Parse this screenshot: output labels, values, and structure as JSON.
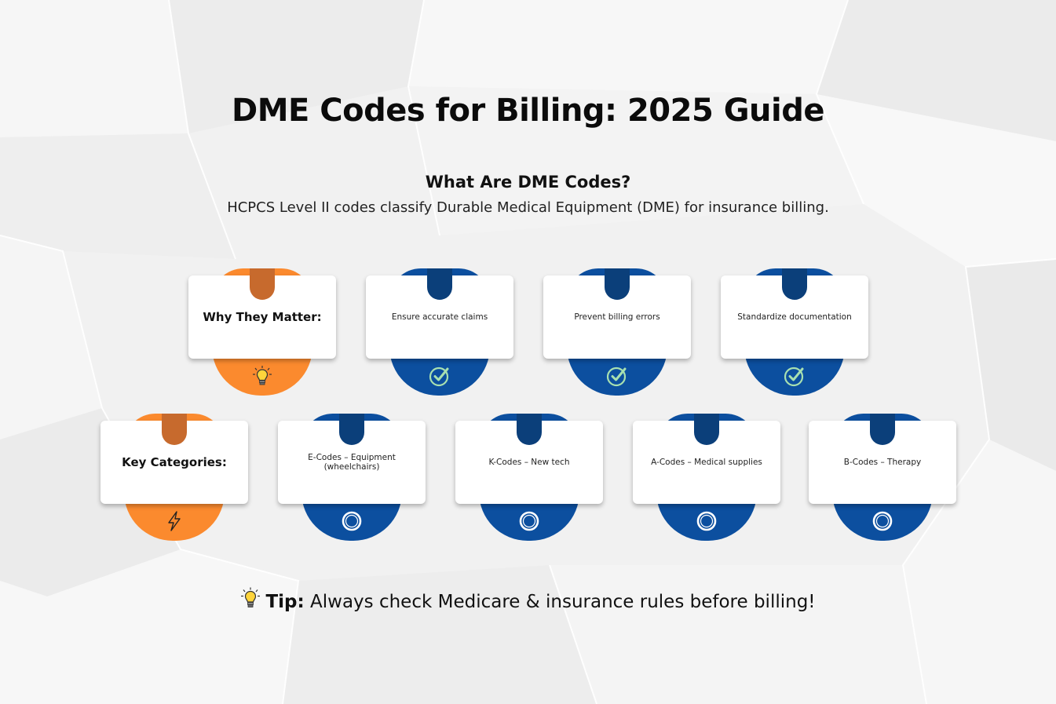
{
  "title": "DME Codes for Billing: 2025 Guide",
  "subtitle": "What Are DME Codes?",
  "description": "HCPCS Level II codes classify Durable Medical Equipment (DME) for insurance billing.",
  "row1": {
    "header": {
      "label": "Why They Matter:",
      "icon": "lightbulb-icon"
    },
    "items": [
      {
        "label": "Ensure accurate claims",
        "icon": "check-circle-icon"
      },
      {
        "label": "Prevent billing errors",
        "icon": "check-circle-icon"
      },
      {
        "label": "Standardize documentation",
        "icon": "check-circle-icon"
      }
    ]
  },
  "row2": {
    "header": {
      "label": "Key Categories:",
      "icon": "lightning-icon"
    },
    "items": [
      {
        "label": "E-Codes – Equipment (wheelchairs)",
        "icon": "ring-icon"
      },
      {
        "label": "K-Codes – New tech",
        "icon": "ring-icon"
      },
      {
        "label": "A-Codes – Medical supplies",
        "icon": "ring-icon"
      },
      {
        "label": "B-Codes – Therapy",
        "icon": "ring-icon"
      }
    ]
  },
  "tip": {
    "prefix": "Tip:",
    "text": " Always check Medicare & insurance rules before billing!",
    "icon": "lightbulb-icon"
  },
  "colors": {
    "orange": "#fb8a2e",
    "orange_dark": "#c76a2d",
    "blue": "#0c4f9f",
    "blue_dark": "#0b3f7a"
  }
}
